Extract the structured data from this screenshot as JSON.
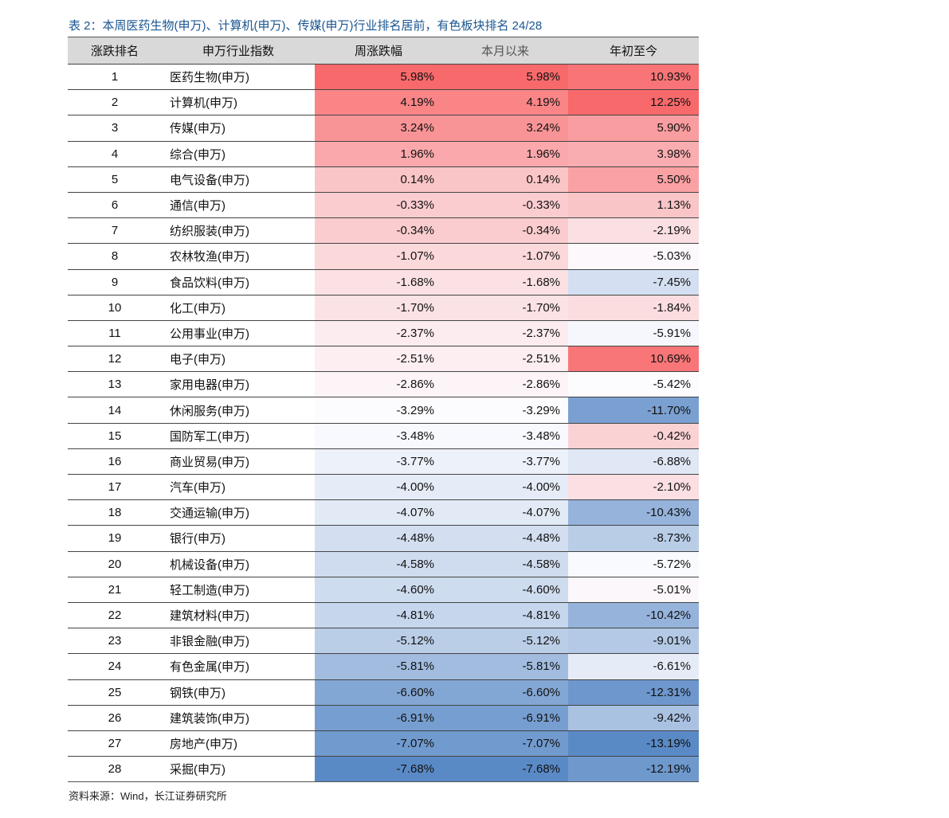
{
  "title": "表 2：本周医药生物(申万)、计算机(申万)、传媒(申万)行业排名居前，有色板块排名 24/28",
  "headers": [
    "涨跌排名",
    "申万行业指数",
    "周涨跌幅",
    "本月以来",
    "年初至今"
  ],
  "color_scale": {
    "high": "#F8696B",
    "mid": "#FCFCFF",
    "low": "#5A8AC6"
  },
  "rows": [
    {
      "rank": "1",
      "name": "医药生物(申万)",
      "week": "5.98%",
      "month": "5.98%",
      "ytd": "10.93%"
    },
    {
      "rank": "2",
      "name": "计算机(申万)",
      "week": "4.19%",
      "month": "4.19%",
      "ytd": "12.25%"
    },
    {
      "rank": "3",
      "name": "传媒(申万)",
      "week": "3.24%",
      "month": "3.24%",
      "ytd": "5.90%"
    },
    {
      "rank": "4",
      "name": "综合(申万)",
      "week": "1.96%",
      "month": "1.96%",
      "ytd": "3.98%"
    },
    {
      "rank": "5",
      "name": "电气设备(申万)",
      "week": "0.14%",
      "month": "0.14%",
      "ytd": "5.50%"
    },
    {
      "rank": "6",
      "name": "通信(申万)",
      "week": "-0.33%",
      "month": "-0.33%",
      "ytd": "1.13%"
    },
    {
      "rank": "7",
      "name": "纺织服装(申万)",
      "week": "-0.34%",
      "month": "-0.34%",
      "ytd": "-2.19%"
    },
    {
      "rank": "8",
      "name": "农林牧渔(申万)",
      "week": "-1.07%",
      "month": "-1.07%",
      "ytd": "-5.03%"
    },
    {
      "rank": "9",
      "name": "食品饮料(申万)",
      "week": "-1.68%",
      "month": "-1.68%",
      "ytd": "-7.45%"
    },
    {
      "rank": "10",
      "name": "化工(申万)",
      "week": "-1.70%",
      "month": "-1.70%",
      "ytd": "-1.84%"
    },
    {
      "rank": "11",
      "name": "公用事业(申万)",
      "week": "-2.37%",
      "month": "-2.37%",
      "ytd": "-5.91%"
    },
    {
      "rank": "12",
      "name": "电子(申万)",
      "week": "-2.51%",
      "month": "-2.51%",
      "ytd": "10.69%"
    },
    {
      "rank": "13",
      "name": "家用电器(申万)",
      "week": "-2.86%",
      "month": "-2.86%",
      "ytd": "-5.42%"
    },
    {
      "rank": "14",
      "name": "休闲服务(申万)",
      "week": "-3.29%",
      "month": "-3.29%",
      "ytd": "-11.70%"
    },
    {
      "rank": "15",
      "name": "国防军工(申万)",
      "week": "-3.48%",
      "month": "-3.48%",
      "ytd": "-0.42%"
    },
    {
      "rank": "16",
      "name": "商业贸易(申万)",
      "week": "-3.77%",
      "month": "-3.77%",
      "ytd": "-6.88%"
    },
    {
      "rank": "17",
      "name": "汽车(申万)",
      "week": "-4.00%",
      "month": "-4.00%",
      "ytd": "-2.10%"
    },
    {
      "rank": "18",
      "name": "交通运输(申万)",
      "week": "-4.07%",
      "month": "-4.07%",
      "ytd": "-10.43%"
    },
    {
      "rank": "19",
      "name": "银行(申万)",
      "week": "-4.48%",
      "month": "-4.48%",
      "ytd": "-8.73%"
    },
    {
      "rank": "20",
      "name": "机械设备(申万)",
      "week": "-4.58%",
      "month": "-4.58%",
      "ytd": "-5.72%"
    },
    {
      "rank": "21",
      "name": "轻工制造(申万)",
      "week": "-4.60%",
      "month": "-4.60%",
      "ytd": "-5.01%"
    },
    {
      "rank": "22",
      "name": "建筑材料(申万)",
      "week": "-4.81%",
      "month": "-4.81%",
      "ytd": "-10.42%"
    },
    {
      "rank": "23",
      "name": "非银金融(申万)",
      "week": "-5.12%",
      "month": "-5.12%",
      "ytd": "-9.01%"
    },
    {
      "rank": "24",
      "name": "有色金属(申万)",
      "week": "-5.81%",
      "month": "-5.81%",
      "ytd": "-6.61%"
    },
    {
      "rank": "25",
      "name": "钢铁(申万)",
      "week": "-6.60%",
      "month": "-6.60%",
      "ytd": "-12.31%"
    },
    {
      "rank": "26",
      "name": "建筑装饰(申万)",
      "week": "-6.91%",
      "month": "-6.91%",
      "ytd": "-9.42%"
    },
    {
      "rank": "27",
      "name": "房地产(申万)",
      "week": "-7.07%",
      "month": "-7.07%",
      "ytd": "-13.19%"
    },
    {
      "rank": "28",
      "name": "采掘(申万)",
      "week": "-7.68%",
      "month": "-7.68%",
      "ytd": "-12.19%"
    }
  ],
  "source": "资料来源：Wind，长江证券研究所"
}
